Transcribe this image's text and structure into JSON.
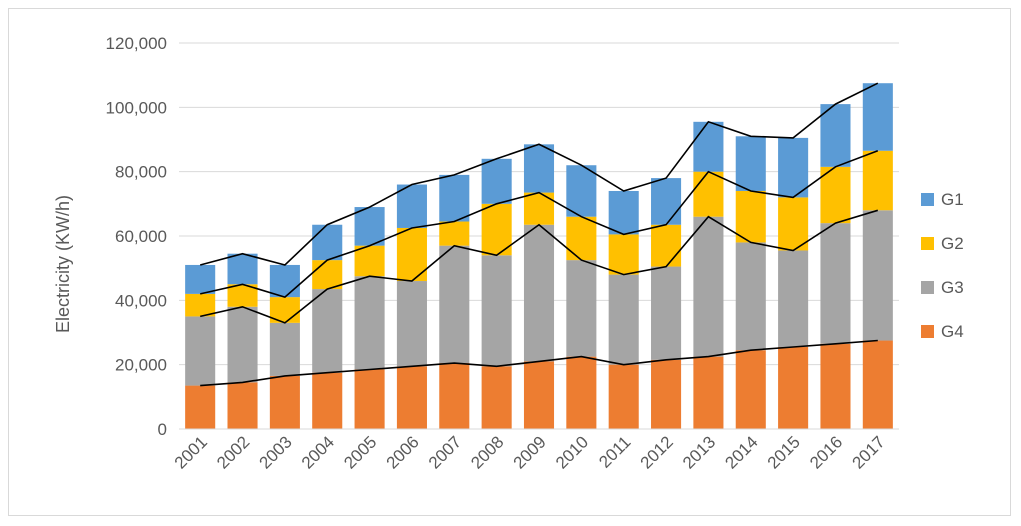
{
  "chart_data": {
    "type": "bar",
    "stacked": true,
    "title": "",
    "xlabel": "",
    "ylabel": "Electricity (KW/h)",
    "ylim": [
      0,
      120000
    ],
    "yticks": [
      "0",
      "20,000",
      "40,000",
      "60,000",
      "80,000",
      "100,000",
      "120,000"
    ],
    "yticks_values": [
      0,
      20000,
      40000,
      60000,
      80000,
      100000,
      120000
    ],
    "grid": true,
    "legend_position": "right",
    "categories": [
      "2001",
      "2002",
      "2003",
      "2004",
      "2005",
      "2006",
      "2007",
      "2008",
      "2009",
      "2010",
      "2011",
      "2012",
      "2013",
      "2014",
      "2015",
      "2016",
      "2017"
    ],
    "series": [
      {
        "name": "G4",
        "color": "#ED7D31",
        "values": [
          13500,
          14500,
          16500,
          17500,
          18500,
          19500,
          20500,
          19500,
          21000,
          22500,
          20000,
          21500,
          22500,
          24500,
          25500,
          26500,
          27500
        ]
      },
      {
        "name": "G3",
        "color": "#A5A5A5",
        "values": [
          21500,
          23500,
          16500,
          26000,
          29000,
          26500,
          36500,
          34500,
          42500,
          30000,
          28000,
          29000,
          43500,
          33500,
          30000,
          37500,
          40500
        ]
      },
      {
        "name": "G2",
        "color": "#FFC000",
        "values": [
          7000,
          7000,
          8000,
          9000,
          9500,
          16500,
          7500,
          16000,
          10000,
          13500,
          12500,
          13000,
          14000,
          16000,
          16500,
          17500,
          18500
        ]
      },
      {
        "name": "G1",
        "color": "#5B9BD5",
        "values": [
          9000,
          9500,
          10000,
          11000,
          12000,
          13500,
          14500,
          14000,
          15000,
          16000,
          13500,
          14500,
          15500,
          17000,
          18500,
          19500,
          21000
        ]
      }
    ],
    "legend": [
      "G1",
      "G2",
      "G3",
      "G4"
    ]
  }
}
